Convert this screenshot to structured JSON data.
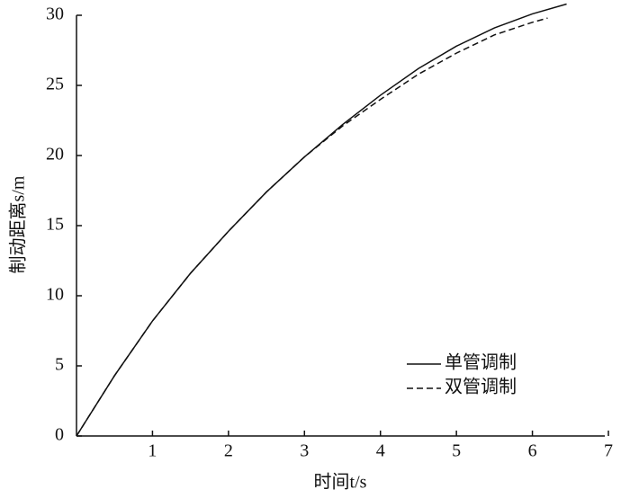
{
  "chart_data": {
    "type": "line",
    "xlabel": "时间t/s",
    "ylabel": "制动距离s/m",
    "xlim": [
      0,
      7
    ],
    "xticks": [
      1,
      2,
      3,
      4,
      5,
      6,
      7
    ],
    "ylim": [
      0,
      30
    ],
    "yticks": [
      0,
      5,
      10,
      15,
      20,
      25,
      30
    ],
    "legend": "lower right",
    "series": [
      {
        "name": "单管调制",
        "color": "#111111",
        "dash": "solid",
        "x": [
          0,
          0.5,
          1,
          1.5,
          2,
          2.5,
          3,
          3.5,
          4,
          4.5,
          5,
          5.5,
          6,
          6.45
        ],
        "values": [
          0,
          4.3,
          8.2,
          11.6,
          14.6,
          17.4,
          19.9,
          22.2,
          24.3,
          26.2,
          27.8,
          29.1,
          30.1,
          30.8
        ]
      },
      {
        "name": "双管调制",
        "color": "#111111",
        "dash": "dashed",
        "x": [
          0,
          0.5,
          1,
          1.5,
          2,
          2.5,
          3,
          3.5,
          4,
          4.5,
          5,
          5.5,
          6,
          6.2
        ],
        "values": [
          0,
          4.3,
          8.2,
          11.6,
          14.6,
          17.4,
          19.9,
          22.1,
          24.0,
          25.8,
          27.3,
          28.6,
          29.5,
          29.8
        ]
      }
    ]
  }
}
